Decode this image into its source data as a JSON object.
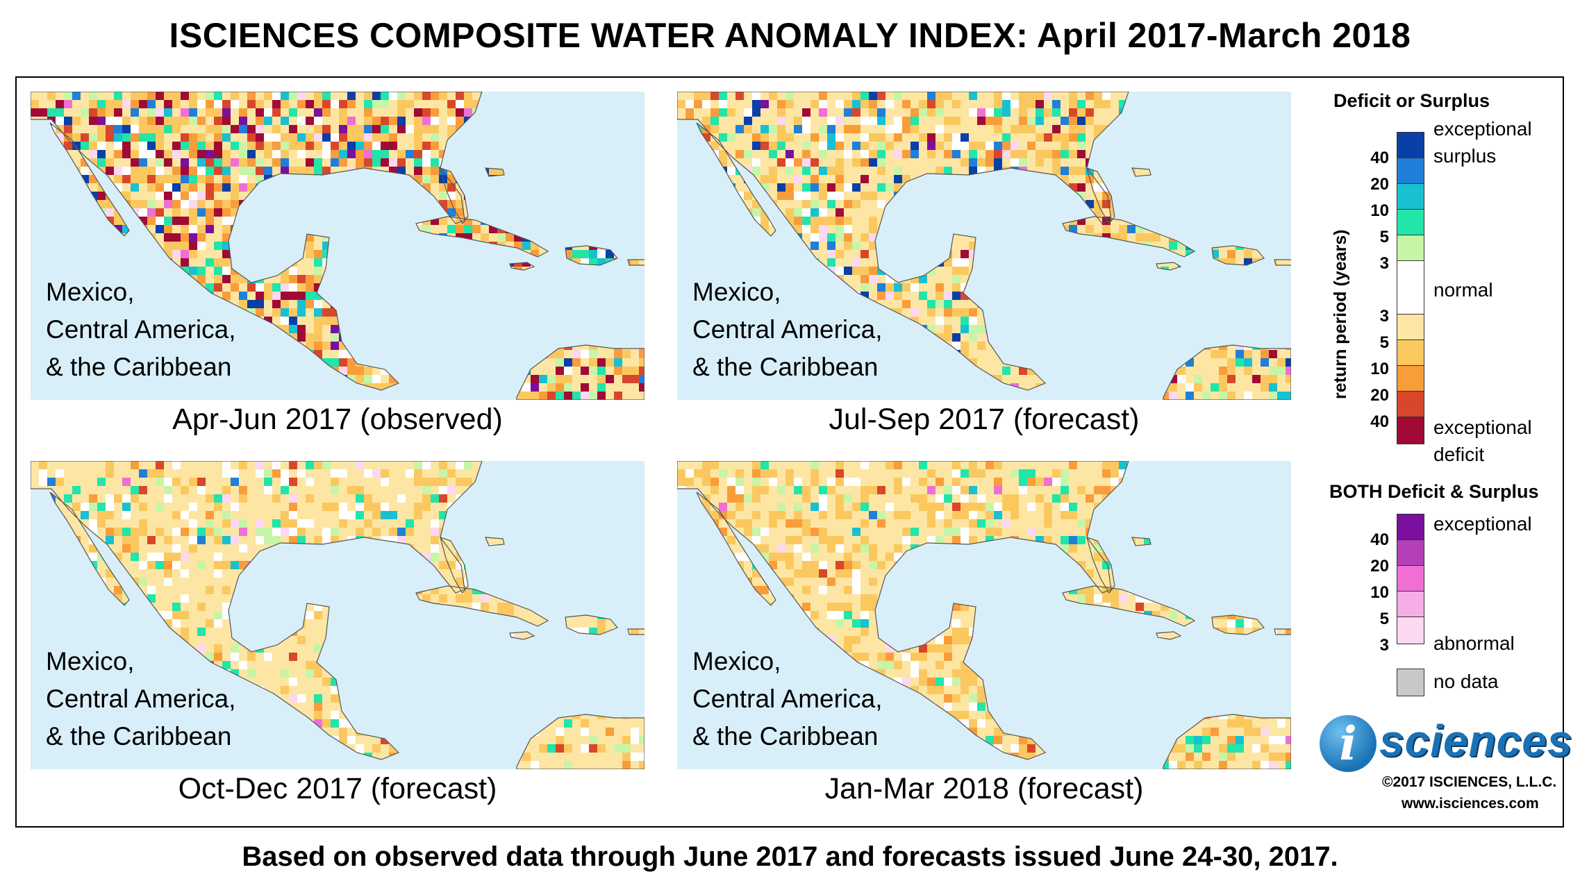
{
  "title": "ISCIENCES COMPOSITE WATER ANOMALY INDEX: April 2017-March 2018",
  "footer": "Based on observed data through June 2017 and forecasts issued June 24-30, 2017.",
  "region_label": {
    "line1": "Mexico,",
    "line2": "Central America,",
    "line3": "& the Caribbean"
  },
  "panels": [
    {
      "caption": "Apr-Jun 2017 (observed)",
      "seed": 11,
      "weights": {
        "d1": 0.28,
        "d2": 0.2,
        "d3": 0.1,
        "d4": 0.06,
        "d5": 0.07,
        "s1": 0.04,
        "s2": 0.05,
        "s3": 0.03,
        "s4": 0.02,
        "s5": 0.03,
        "normal": 0.08,
        "b1": 0.02,
        "b3": 0.01,
        "b5": 0.01
      }
    },
    {
      "caption": "Jul-Sep 2017 (forecast)",
      "seed": 23,
      "weights": {
        "d1": 0.45,
        "d2": 0.2,
        "d3": 0.06,
        "d4": 0.02,
        "d5": 0.02,
        "s1": 0.04,
        "s2": 0.04,
        "s3": 0.02,
        "s4": 0.03,
        "s5": 0.02,
        "normal": 0.07,
        "b1": 0.02,
        "b3": 0.005,
        "b5": 0.005
      }
    },
    {
      "caption": "Oct-Dec 2017 (forecast)",
      "seed": 37,
      "weights": {
        "d1": 0.6,
        "d2": 0.14,
        "d3": 0.02,
        "d4": 0.005,
        "d5": 0.0,
        "s1": 0.04,
        "s2": 0.04,
        "s3": 0.01,
        "s4": 0.005,
        "s5": 0.0,
        "normal": 0.12,
        "b1": 0.015,
        "b3": 0.005,
        "b5": 0.0
      }
    },
    {
      "caption": "Jan-Mar 2018 (forecast)",
      "seed": 53,
      "weights": {
        "d1": 0.5,
        "d2": 0.24,
        "d3": 0.05,
        "d4": 0.01,
        "d5": 0.0,
        "s1": 0.04,
        "s2": 0.04,
        "s3": 0.01,
        "s4": 0.005,
        "s5": 0.0,
        "normal": 0.09,
        "b1": 0.015,
        "b3": 0.005,
        "b5": 0.0
      }
    }
  ],
  "legend": {
    "deficit_surplus": {
      "title": "Deficit or Surplus",
      "axis_label": "return period (years)",
      "label_exceptional_surplus_1": "exceptional",
      "label_exceptional_surplus_2": "surplus",
      "label_normal": "normal",
      "label_exceptional_deficit_1": "exceptional",
      "label_exceptional_deficit_2": "deficit",
      "surplus_ticks": [
        "40",
        "20",
        "10",
        "5",
        "3"
      ],
      "deficit_ticks": [
        "3",
        "5",
        "10",
        "20",
        "40"
      ],
      "colors": {
        "s5": "#0a3fa8",
        "s4": "#1f7fd9",
        "s3": "#18c0d1",
        "s2": "#21e5a9",
        "s1": "#c7f5a8",
        "normal": "#ffffff",
        "d1": "#fde6a3",
        "d2": "#fbc860",
        "d3": "#f99d3b",
        "d4": "#d9472b",
        "d5": "#a10a36"
      }
    },
    "both": {
      "title": "BOTH Deficit & Surplus",
      "label_exceptional": "exceptional",
      "label_abnormal": "abnormal",
      "ticks": [
        "40",
        "20",
        "10",
        "5",
        "3"
      ],
      "colors": {
        "b5": "#7b0f9e",
        "b4": "#b33fb9",
        "b3": "#ef6fd3",
        "b2": "#f6aee6",
        "b1": "#fcd8f1"
      }
    },
    "no_data": {
      "label": "no data",
      "color": "#c8c8c8"
    }
  },
  "ocean_color": "#d8eff9",
  "logo": {
    "mark": "i",
    "word": "sciences"
  },
  "copyright": "©2017 ISCIENCES, L.L.C.",
  "website": "www.isciences.com"
}
